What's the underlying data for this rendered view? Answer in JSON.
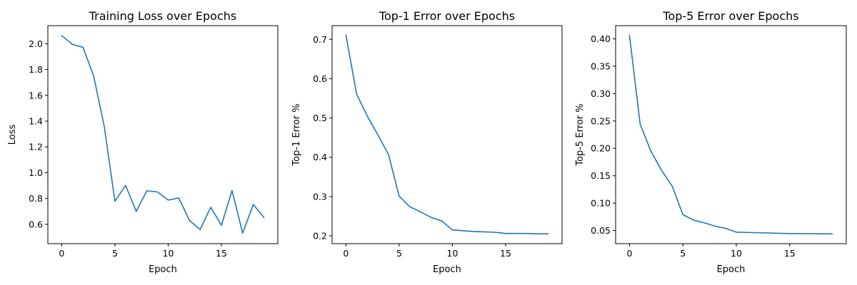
{
  "chart_data": [
    {
      "type": "line",
      "title": "Training Loss over Epochs",
      "xlabel": "Epoch",
      "ylabel": "Loss",
      "x": [
        0,
        1,
        2,
        3,
        4,
        5,
        6,
        7,
        8,
        9,
        10,
        11,
        12,
        13,
        14,
        15,
        16,
        17,
        18,
        19
      ],
      "series": [
        {
          "values": [
            2.063,
            1.995,
            1.972,
            1.751,
            1.358,
            0.779,
            0.902,
            0.7,
            0.86,
            0.851,
            0.788,
            0.804,
            0.631,
            0.559,
            0.732,
            0.593,
            0.862,
            0.532,
            0.754,
            0.653
          ]
        }
      ],
      "xlim": [
        -1.3,
        20.3
      ],
      "ylim": [
        0.45,
        2.14
      ],
      "xticks": [
        0,
        5,
        10,
        15
      ],
      "yticks": [
        0.6,
        0.8,
        1.0,
        1.2,
        1.4,
        1.6,
        1.8,
        2.0
      ],
      "xtick_labels": [
        "0",
        "5",
        "10",
        "15"
      ],
      "ytick_labels": [
        "0.6",
        "0.8",
        "1.0",
        "1.2",
        "1.4",
        "1.6",
        "1.8",
        "2.0"
      ],
      "grid": false
    },
    {
      "type": "line",
      "title": "Top-1 Error over Epochs",
      "xlabel": "Epoch",
      "ylabel": "Top-1 Error %",
      "x": [
        0,
        1,
        2,
        3,
        4,
        5,
        6,
        7,
        8,
        9,
        10,
        11,
        12,
        13,
        14,
        15,
        16,
        17,
        18,
        19
      ],
      "series": [
        {
          "values": [
            0.711,
            0.561,
            0.505,
            0.457,
            0.407,
            0.301,
            0.274,
            0.261,
            0.247,
            0.238,
            0.215,
            0.213,
            0.211,
            0.21,
            0.209,
            0.206,
            0.206,
            0.206,
            0.205,
            0.205
          ]
        }
      ],
      "xlim": [
        -1.3,
        20.3
      ],
      "ylim": [
        0.18,
        0.735
      ],
      "xticks": [
        0,
        5,
        10,
        15
      ],
      "yticks": [
        0.2,
        0.3,
        0.4,
        0.5,
        0.6,
        0.7
      ],
      "xtick_labels": [
        "0",
        "5",
        "10",
        "15"
      ],
      "ytick_labels": [
        "0.2",
        "0.3",
        "0.4",
        "0.5",
        "0.6",
        "0.7"
      ],
      "grid": false
    },
    {
      "type": "line",
      "title": "Top-5 Error over Epochs",
      "xlabel": "Epoch",
      "ylabel": "Top-5 Error %",
      "x": [
        0,
        1,
        2,
        3,
        4,
        5,
        6,
        7,
        8,
        9,
        10,
        11,
        12,
        13,
        14,
        15,
        16,
        17,
        18,
        19
      ],
      "series": [
        {
          "values": [
            0.406,
            0.244,
            0.195,
            0.16,
            0.131,
            0.079,
            0.069,
            0.064,
            0.058,
            0.054,
            0.047,
            0.0465,
            0.046,
            0.0455,
            0.045,
            0.0445,
            0.0443,
            0.0442,
            0.0441,
            0.044
          ]
        }
      ],
      "xlim": [
        -1.3,
        20.3
      ],
      "ylim": [
        0.026,
        0.424
      ],
      "xticks": [
        0,
        5,
        10,
        15
      ],
      "yticks": [
        0.05,
        0.1,
        0.15,
        0.2,
        0.25,
        0.3,
        0.35,
        0.4
      ],
      "xtick_labels": [
        "0",
        "5",
        "10",
        "15"
      ],
      "ytick_labels": [
        "0.05",
        "0.10",
        "0.15",
        "0.20",
        "0.25",
        "0.30",
        "0.35",
        "0.40"
      ],
      "grid": false
    }
  ],
  "colors": {
    "series": "#1f77b4",
    "axis": "#000000",
    "background": "#ffffff"
  }
}
